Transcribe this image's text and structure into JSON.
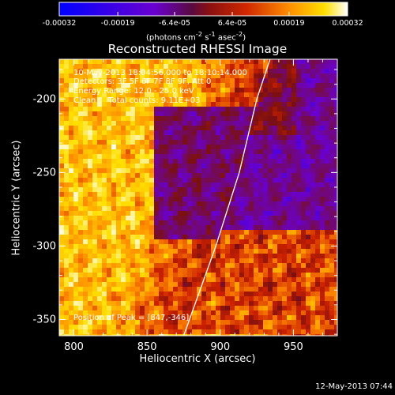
{
  "colorbar": {
    "tick_labels": [
      "-0.00032",
      "-0.00019",
      "-6.4e-05",
      "6.4e-05",
      "0.00019",
      "0.00032"
    ],
    "units_html": "(photons cm<sup>-2</sup> s<sup>-1</sup> asec<sup>-2</sup>)",
    "range": [
      -0.00032,
      0.00032
    ],
    "colors": [
      "#0000ff",
      "#6a00d0",
      "#7a1010",
      "#cc2000",
      "#ff8800",
      "#ffe000",
      "#ffffff"
    ]
  },
  "annotation": {
    "line1": "10-May-2013 18:04:56.000 to 18:10:14.000",
    "line2": "Detectors: 3F 5F 6F 7F 8F 9F, Att 0",
    "line3": "Energy Range: 12.0 - 25.0 keV",
    "line4": "Clean     Total counts: 9.11E+03",
    "peak": "Position of Peak = [847,-346]"
  },
  "footer": {
    "timestamp": "12-May-2013 07:44"
  },
  "chart_data": {
    "type": "heatmap",
    "title": "Reconstructed RHESSI Image",
    "xlabel": "Heliocentric X (arcsec)",
    "ylabel": "Heliocentric Y (arcsec)",
    "xlim": [
      790,
      980
    ],
    "ylim": [
      -361,
      -173
    ],
    "xticks": [
      800,
      850,
      900,
      950
    ],
    "yticks": [
      -200,
      -250,
      -300,
      -350
    ],
    "grid": false,
    "limb_curve": [
      [
        875,
        -361
      ],
      [
        897,
        -300
      ],
      [
        913,
        -250
      ],
      [
        925,
        -200
      ],
      [
        934,
        -173
      ]
    ],
    "left_region_mean_level": "high (orange/yellow, mostly positive flux)",
    "right_region_mean_level": "low (purple/blue, near zero to negative flux)"
  }
}
